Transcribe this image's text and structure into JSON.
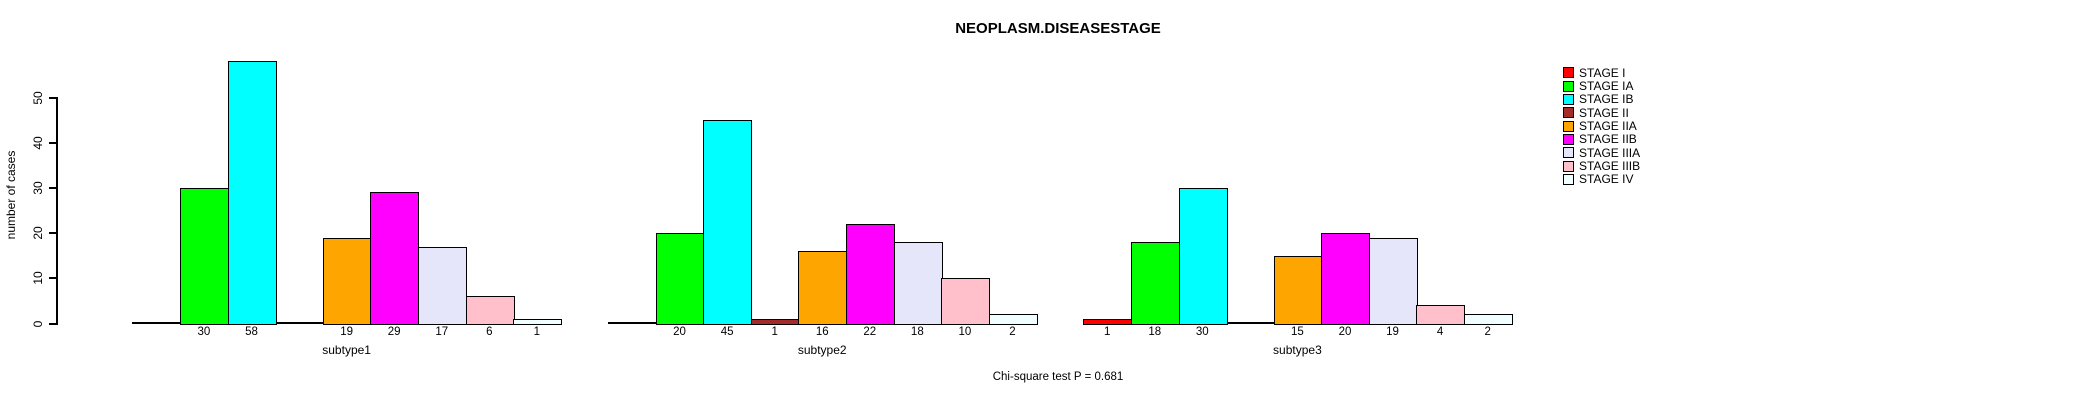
{
  "chart_data": {
    "type": "bar",
    "title": "NEOPLASM.DISEASESTAGE",
    "ylabel": "number of cases",
    "xlabel": "",
    "yticks": [
      0,
      10,
      20,
      30,
      40,
      50
    ],
    "ylim": [
      0,
      58
    ],
    "grid": false,
    "legend_position": "right",
    "bar_value_labels_shown": true,
    "categories": [
      "subtype1",
      "subtype2",
      "subtype3"
    ],
    "series": [
      {
        "name": "STAGE I",
        "color": "#FF0000",
        "values": [
          0,
          0,
          1
        ]
      },
      {
        "name": "STAGE IA",
        "color": "#00FF00",
        "values": [
          30,
          20,
          18
        ]
      },
      {
        "name": "STAGE IB",
        "color": "#00FFFF",
        "values": [
          58,
          45,
          30
        ]
      },
      {
        "name": "STAGE II",
        "color": "#A52A2A",
        "values": [
          0,
          1,
          0
        ]
      },
      {
        "name": "STAGE IIA",
        "color": "#FFA500",
        "values": [
          19,
          16,
          15
        ]
      },
      {
        "name": "STAGE IIB",
        "color": "#FF00FF",
        "values": [
          29,
          22,
          20
        ]
      },
      {
        "name": "STAGE IIIA",
        "color": "#E6E6FA",
        "values": [
          17,
          18,
          19
        ]
      },
      {
        "name": "STAGE IIIB",
        "color": "#FFC0CB",
        "values": [
          6,
          10,
          4
        ]
      },
      {
        "name": "STAGE IV",
        "color": "#F0FFFF",
        "values": [
          1,
          2,
          2
        ]
      }
    ]
  },
  "footer": {
    "chi_square_text": "Chi-square test P = 0.681"
  },
  "colors": {
    "axis": "#000000",
    "background": "#FFFFFF"
  }
}
